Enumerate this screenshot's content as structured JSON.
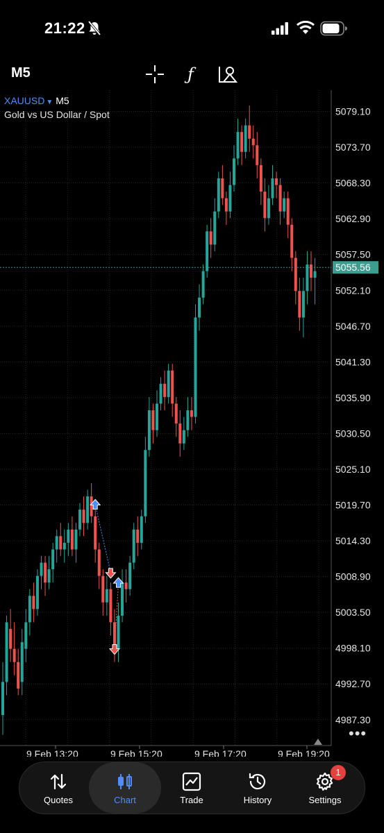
{
  "status_bar": {
    "time": "21:22"
  },
  "toolbar": {
    "timeframe": "M5"
  },
  "chart_header": {
    "symbol": "XAUUSD",
    "timeframe": "M5",
    "description": "Gold vs US Dollar / Spot"
  },
  "chart_data": {
    "type": "candlestick",
    "symbol": "XAUUSD",
    "timeframe": "M5",
    "price_labels": [
      "5079.10",
      "5073.70",
      "5068.30",
      "5062.90",
      "5057.50",
      "5052.10",
      "5046.70",
      "5041.30",
      "5035.90",
      "5030.50",
      "5025.10",
      "5019.70",
      "5014.30",
      "5008.90",
      "5003.50",
      "4998.10",
      "4992.70",
      "4987.30"
    ],
    "current_price": "5055.56",
    "time_labels": [
      "9 Feb 13:20",
      "9 Feb 15:20",
      "9 Feb 17:20",
      "9 Feb 19:20"
    ],
    "ylim": [
      4983.4,
      5082.3
    ],
    "grid": true,
    "up_color": "#26a69a",
    "down_color": "#ef5350",
    "current_price_color": "#3c9e8e",
    "candles": [
      [
        4988,
        4993,
        4985,
        4996
      ],
      [
        4993,
        5002,
        4991,
        5003
      ],
      [
        5001,
        4998,
        4996,
        5004
      ],
      [
        4998,
        4996,
        4994,
        5002
      ],
      [
        4996,
        4992,
        4991,
        4998
      ],
      [
        4993,
        4999,
        4991,
        5001
      ],
      [
        4998,
        5002,
        4996,
        5004
      ],
      [
        5002,
        5006,
        5000,
        5007
      ],
      [
        5006,
        5004,
        5002,
        5008
      ],
      [
        5004,
        5009,
        5003,
        5010
      ],
      [
        5009,
        5011,
        5007,
        5012
      ],
      [
        5011,
        5008,
        5006,
        5012
      ],
      [
        5008,
        5010,
        5007,
        5012
      ],
      [
        5010,
        5013,
        5008,
        5014
      ],
      [
        5013,
        5015,
        5011,
        5016
      ],
      [
        5015,
        5013,
        5012,
        5017
      ],
      [
        5013,
        5014,
        5011,
        5016
      ],
      [
        5014,
        5016,
        5012,
        5017
      ],
      [
        5016,
        5013,
        5012,
        5018
      ],
      [
        5013,
        5016,
        5011,
        5017
      ],
      [
        5016,
        5019,
        5015,
        5020
      ],
      [
        5019,
        5017,
        5015,
        5021
      ],
      [
        5017,
        5021,
        5016,
        5022
      ],
      [
        5021,
        5018,
        5017,
        5023
      ],
      [
        5018,
        5013,
        5011,
        5019
      ],
      [
        5013,
        5009,
        5007,
        5014
      ],
      [
        5009,
        5005,
        5003,
        5010
      ],
      [
        5005,
        5007,
        5003,
        5009
      ],
      [
        5007,
        5002,
        5000,
        5008
      ],
      [
        5002,
        4998,
        4996,
        5004
      ],
      [
        4998,
        5003,
        4996,
        5005
      ],
      [
        5003,
        5008,
        5002,
        5010
      ],
      [
        5008,
        5007,
        5005,
        5010
      ],
      [
        5007,
        5011,
        5006,
        5012
      ],
      [
        5011,
        5016,
        5010,
        5017
      ],
      [
        5016,
        5014,
        5012,
        5018
      ],
      [
        5014,
        5018,
        5013,
        5019
      ],
      [
        5018,
        5028,
        5017,
        5030
      ],
      [
        5028,
        5034,
        5027,
        5036
      ],
      [
        5034,
        5031,
        5029,
        5035
      ],
      [
        5031,
        5035,
        5030,
        5037
      ],
      [
        5035,
        5038,
        5034,
        5039
      ],
      [
        5038,
        5036,
        5034,
        5040
      ],
      [
        5036,
        5040,
        5035,
        5041
      ],
      [
        5040,
        5035,
        5033,
        5041
      ],
      [
        5035,
        5032,
        5030,
        5036
      ],
      [
        5032,
        5029,
        5027,
        5034
      ],
      [
        5029,
        5031,
        5028,
        5033
      ],
      [
        5031,
        5034,
        5030,
        5036
      ],
      [
        5034,
        5033,
        5031,
        5036
      ],
      [
        5033,
        5048,
        5032,
        5050
      ],
      [
        5048,
        5051,
        5046,
        5053
      ],
      [
        5051,
        5055,
        5050,
        5056
      ],
      [
        5055,
        5061,
        5054,
        5062
      ],
      [
        5061,
        5059,
        5057,
        5063
      ],
      [
        5059,
        5064,
        5058,
        5066
      ],
      [
        5064,
        5069,
        5063,
        5070
      ],
      [
        5069,
        5066,
        5065,
        5071
      ],
      [
        5066,
        5064,
        5062,
        5067
      ],
      [
        5064,
        5068,
        5063,
        5070
      ],
      [
        5068,
        5072,
        5067,
        5074
      ],
      [
        5072,
        5076,
        5071,
        5078
      ],
      [
        5076,
        5073,
        5071,
        5077
      ],
      [
        5073,
        5077,
        5072,
        5078
      ],
      [
        5077,
        5075,
        5073,
        5080
      ],
      [
        5075,
        5074,
        5072,
        5077
      ],
      [
        5074,
        5071,
        5069,
        5076
      ],
      [
        5071,
        5067,
        5065,
        5072
      ],
      [
        5067,
        5063,
        5061,
        5069
      ],
      [
        5063,
        5066,
        5062,
        5068
      ],
      [
        5066,
        5069,
        5065,
        5071
      ],
      [
        5069,
        5068,
        5066,
        5070
      ],
      [
        5068,
        5064,
        5062,
        5069
      ],
      [
        5064,
        5066,
        5063,
        5067
      ],
      [
        5066,
        5062,
        5060,
        5067
      ],
      [
        5062,
        5057,
        5055,
        5063
      ],
      [
        5057,
        5052,
        5050,
        5058
      ],
      [
        5052,
        5048,
        5046,
        5054
      ],
      [
        5048,
        5052,
        5045,
        5054
      ],
      [
        5052,
        5056,
        5050,
        5058
      ],
      [
        5056,
        5054,
        5052,
        5058
      ],
      [
        5054,
        5055,
        5050,
        5057
      ]
    ],
    "trades": [
      {
        "candle": 24,
        "price": 5019.7,
        "side": "buy"
      },
      {
        "candle": 28,
        "price": 5009.5,
        "side": "sell"
      },
      {
        "candle": 30,
        "price": 5007.9,
        "side": "buy"
      },
      {
        "candle": 29,
        "price": 4998.0,
        "side": "sell"
      }
    ]
  },
  "nav": {
    "items": [
      {
        "label": "Quotes",
        "icon": "quotes-icon"
      },
      {
        "label": "Chart",
        "icon": "chart-icon"
      },
      {
        "label": "Trade",
        "icon": "trade-icon"
      },
      {
        "label": "History",
        "icon": "history-icon"
      },
      {
        "label": "Settings",
        "icon": "settings-icon"
      }
    ],
    "settings_badge": "1"
  }
}
